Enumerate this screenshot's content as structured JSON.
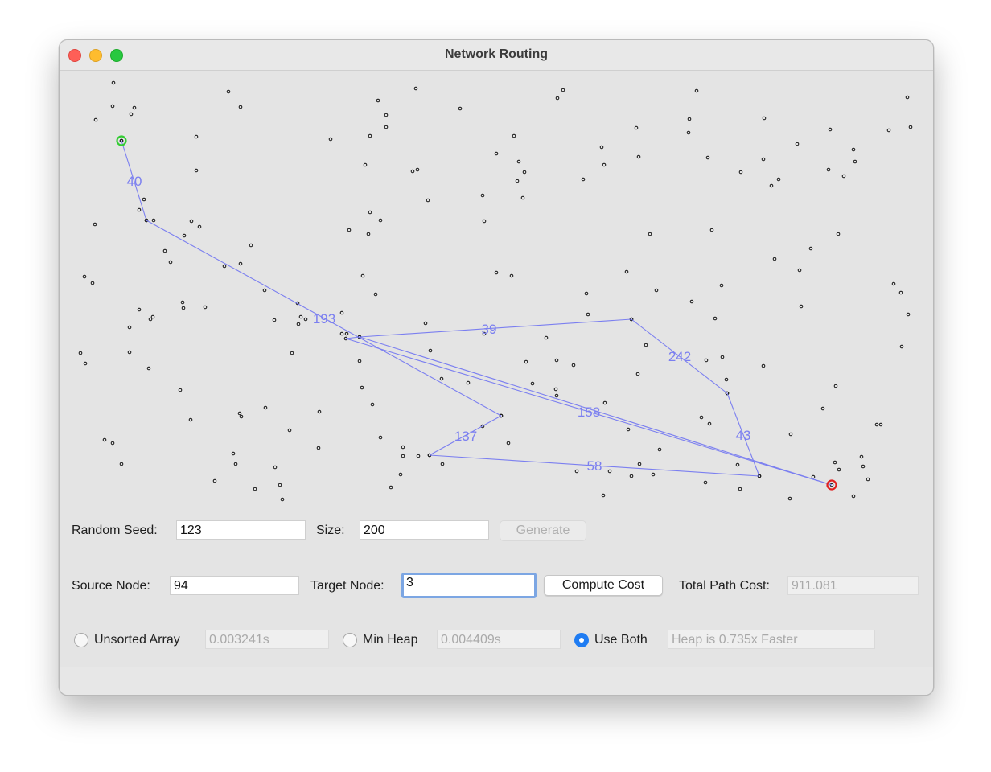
{
  "window": {
    "title": "Network Routing"
  },
  "graph": {
    "source_color": "#33cc33",
    "target_color": "#e02020",
    "path_color": "#7b7ff0",
    "edge_labels": [
      "40",
      "193",
      "137",
      "58",
      "43",
      "242",
      "39",
      "158"
    ]
  },
  "controls": {
    "seed_label": "Random Seed:",
    "seed_value": "123",
    "size_label": "Size:",
    "size_value": "200",
    "generate_label": "Generate",
    "source_label": "Source Node:",
    "source_value": "94",
    "target_label": "Target Node:",
    "target_value": "3",
    "compute_label": "Compute Cost",
    "total_cost_label": "Total Path Cost:",
    "total_cost_value": "911.081"
  },
  "modes": {
    "unsorted_label": "Unsorted Array",
    "unsorted_time": "0.003241s",
    "heap_label": "Min Heap",
    "heap_time": "0.004409s",
    "both_label": "Use Both",
    "both_result": "Heap is 0.735x Faster",
    "selected": "both"
  }
}
